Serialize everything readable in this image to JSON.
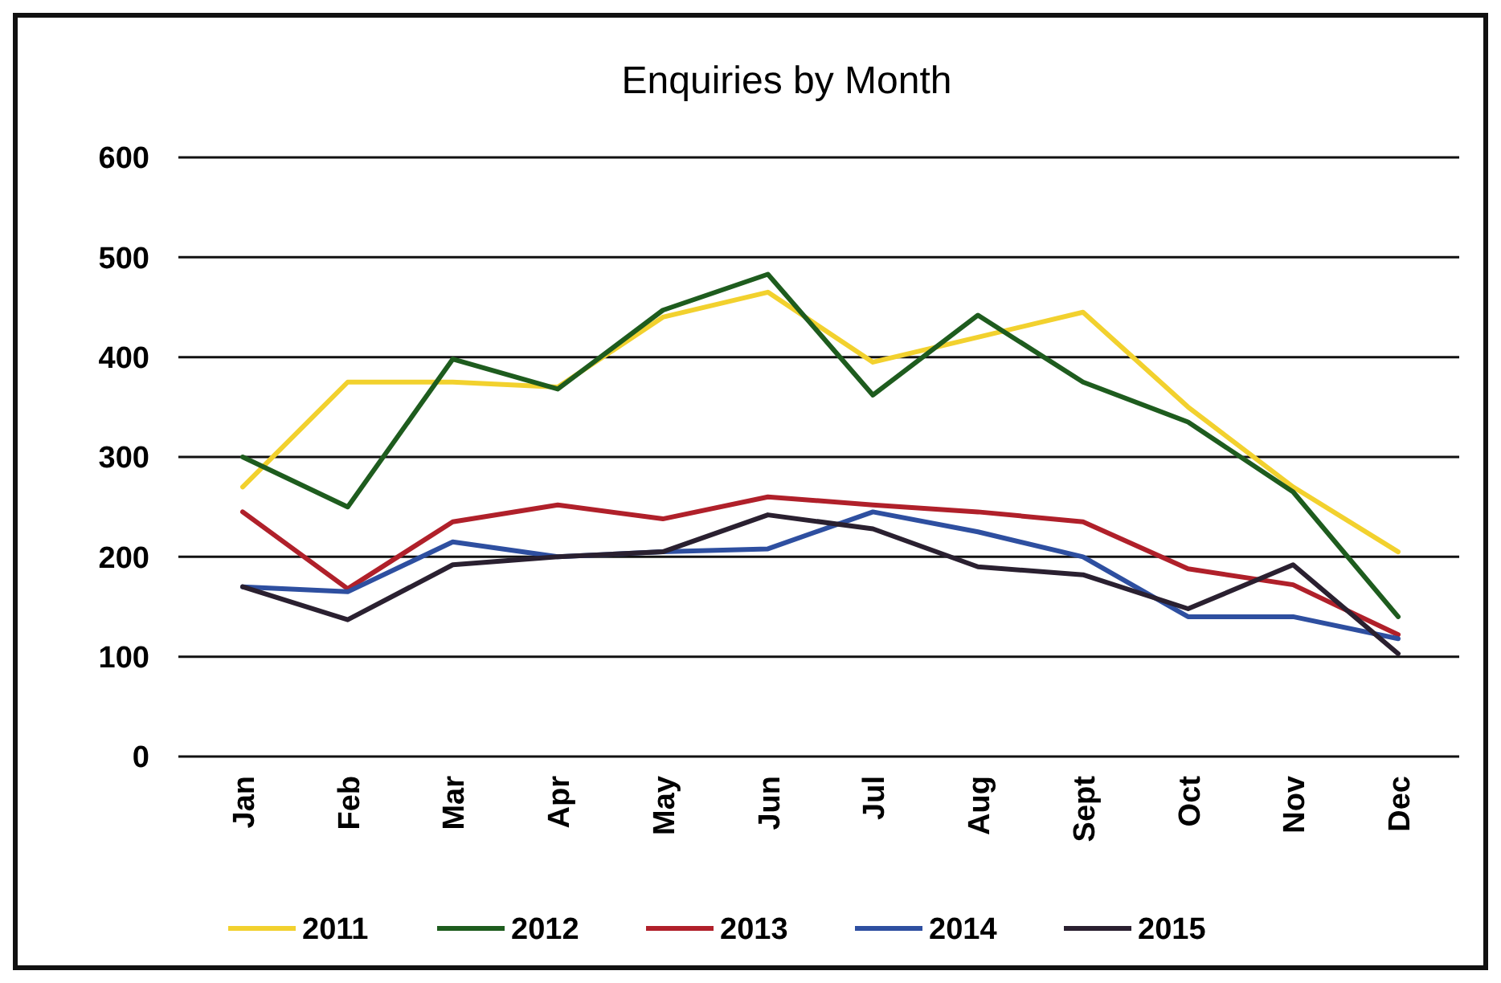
{
  "chart_data": {
    "type": "line",
    "title": "Enquiries by Month",
    "categories": [
      "Jan",
      "Feb",
      "Mar",
      "Apr",
      "May",
      "Jun",
      "Jul",
      "Aug",
      "Sept",
      "Oct",
      "Nov",
      "Dec"
    ],
    "series": [
      {
        "name": "2011",
        "color": "#f2d12e",
        "values": [
          270,
          375,
          375,
          370,
          440,
          465,
          395,
          420,
          445,
          350,
          270,
          205
        ]
      },
      {
        "name": "2012",
        "color": "#1e5c1e",
        "values": [
          300,
          250,
          398,
          368,
          447,
          483,
          362,
          442,
          375,
          335,
          265,
          140
        ]
      },
      {
        "name": "2013",
        "color": "#b0202a",
        "values": [
          245,
          168,
          235,
          252,
          238,
          260,
          252,
          245,
          235,
          188,
          172,
          122
        ]
      },
      {
        "name": "2014",
        "color": "#2e4fa0",
        "values": [
          170,
          165,
          215,
          200,
          205,
          208,
          245,
          225,
          200,
          140,
          140,
          118
        ]
      },
      {
        "name": "2015",
        "color": "#2a2030",
        "values": [
          170,
          137,
          192,
          200,
          205,
          242,
          228,
          190,
          182,
          148,
          192,
          103
        ]
      }
    ],
    "ylim": [
      0,
      600
    ],
    "yticks": [
      0,
      100,
      200,
      300,
      400,
      500,
      600
    ],
    "grid": "y",
    "legend": "bottom",
    "marker": "none",
    "line_style": "solid"
  }
}
